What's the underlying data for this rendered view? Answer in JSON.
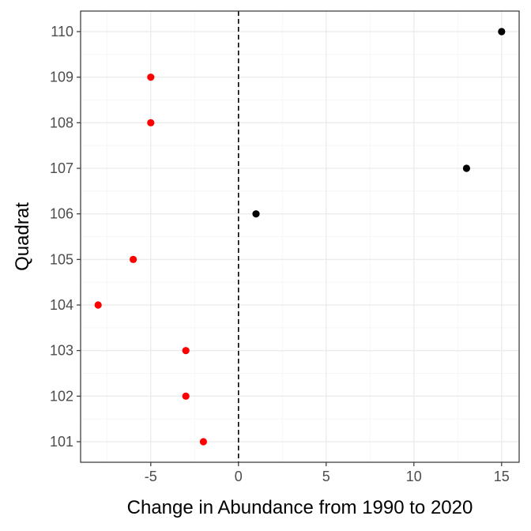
{
  "chart_data": {
    "type": "scatter",
    "title": "",
    "xlabel": "Change in Abundance from 1990 to 2020",
    "ylabel": "Quadrat",
    "xlim": [
      -9,
      16
    ],
    "x_ticks": [
      -5,
      0,
      5,
      10,
      15
    ],
    "x_tick_labels": [
      "-5",
      "0",
      "5",
      "10",
      "15"
    ],
    "categories": [
      "101",
      "102",
      "103",
      "104",
      "105",
      "106",
      "107",
      "108",
      "109",
      "110"
    ],
    "reference_line": {
      "x": 0,
      "style": "dashed"
    },
    "grid": true,
    "legend": "none",
    "colors": {
      "negative": "#ff0000",
      "positive": "#000000",
      "grid_major": "#ebebeb",
      "grid_minor": "#f4f4f4",
      "panel_border": "#333333",
      "reference_line": "#000000"
    },
    "points": [
      {
        "quadrat": "101",
        "x": -2
      },
      {
        "quadrat": "102",
        "x": -3
      },
      {
        "quadrat": "103",
        "x": -3
      },
      {
        "quadrat": "104",
        "x": -8
      },
      {
        "quadrat": "105",
        "x": -6
      },
      {
        "quadrat": "106",
        "x": 1
      },
      {
        "quadrat": "107",
        "x": 13
      },
      {
        "quadrat": "108",
        "x": -5
      },
      {
        "quadrat": "109",
        "x": -5
      },
      {
        "quadrat": "110",
        "x": 15
      }
    ]
  }
}
